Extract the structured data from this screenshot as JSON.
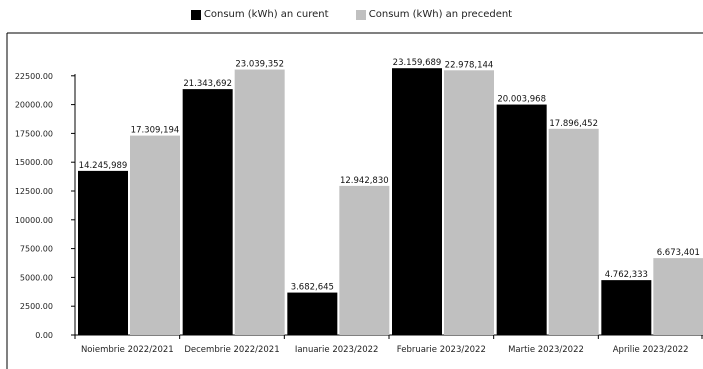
{
  "chart_data": {
    "type": "bar",
    "categories": [
      "Noiembrie 2022/2021",
      "Decembrie 2022/2021",
      "Ianuarie 2023/2022",
      "Februarie 2023/2022",
      "Martie 2023/2022",
      "Aprilie 2023/2022"
    ],
    "series": [
      {
        "name": "Consum (kWh) an curent",
        "color": "#000000",
        "values": [
          14245.989,
          21343.692,
          3682.645,
          23159.689,
          20003.968,
          4762.333
        ],
        "labels": [
          "14.245,989",
          "21.343,692",
          "3.682,645",
          "23.159,689",
          "20.003,968",
          "4.762,333"
        ]
      },
      {
        "name": "Consum (kWh) an precedent",
        "color": "#c0c0c0",
        "values": [
          17309.194,
          23039.352,
          12942.83,
          22978.144,
          17896.452,
          6673.401
        ],
        "labels": [
          "17.309,194",
          "23.039,352",
          "12.942,830",
          "22.978,144",
          "17.896,452",
          "6.673,401"
        ]
      }
    ],
    "yticks": [
      "0.00",
      "2500.00",
      "5000.00",
      "7500.00",
      "10000.00",
      "12500.00",
      "15000.00",
      "17500.00",
      "20000.00",
      "22500.00"
    ],
    "ylim": [
      0,
      25000
    ],
    "title": "",
    "xlabel": "",
    "ylabel": "",
    "legend_position": "top-center",
    "grid": false
  }
}
